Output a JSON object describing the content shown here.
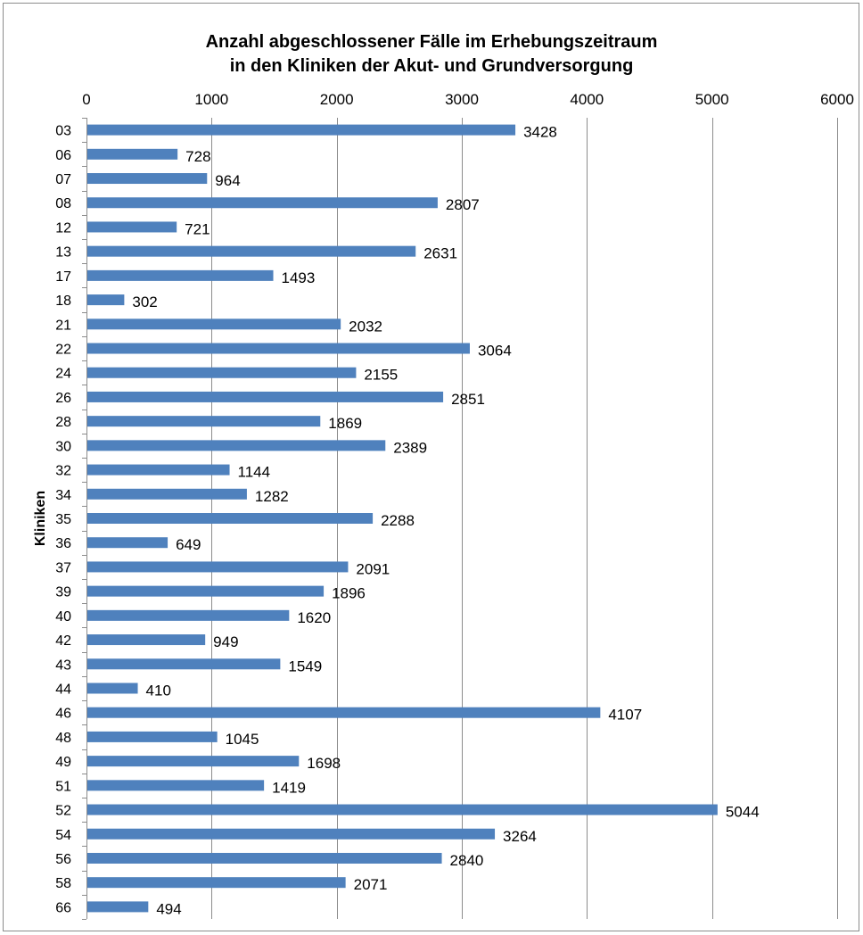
{
  "chart_data": {
    "type": "bar",
    "orientation": "horizontal",
    "title_line1": "Anzahl abgeschlossener Fälle im Erhebungszeitraum",
    "title_line2": "in den Kliniken der Akut- und Grundversorgung",
    "ylabel": "Kliniken",
    "xlabel": "",
    "xlim": [
      0,
      6000
    ],
    "x_ticks": [
      "0",
      "1000",
      "2000",
      "3000",
      "4000",
      "5000",
      "6000"
    ],
    "x_tick_values": [
      0,
      1000,
      2000,
      3000,
      4000,
      5000,
      6000
    ],
    "x_axis_position": "top",
    "grid": "vertical",
    "bar_color": "#4f81bd",
    "categories": [
      "03",
      "06",
      "07",
      "08",
      "12",
      "13",
      "17",
      "18",
      "21",
      "22",
      "24",
      "26",
      "28",
      "30",
      "32",
      "34",
      "35",
      "36",
      "37",
      "39",
      "40",
      "42",
      "43",
      "44",
      "46",
      "48",
      "49",
      "51",
      "52",
      "54",
      "56",
      "58",
      "66"
    ],
    "values": [
      3428,
      728,
      964,
      2807,
      721,
      2631,
      1493,
      302,
      2032,
      3064,
      2155,
      2851,
      1869,
      2389,
      1144,
      1282,
      2288,
      649,
      2091,
      1896,
      1620,
      949,
      1549,
      410,
      4107,
      1045,
      1698,
      1419,
      5044,
      3264,
      2840,
      2071,
      494
    ],
    "data_labels": [
      "3428",
      "728",
      "964",
      "2807",
      "721",
      "2631",
      "1493",
      "302",
      "2032",
      "3064",
      "2155",
      "2851",
      "1869",
      "2389",
      "1144",
      "1282",
      "2288",
      "649",
      "2091",
      "1896",
      "1620",
      "949",
      "1549",
      "410",
      "4107",
      "1045",
      "1698",
      "1419",
      "5044",
      "3264",
      "2840",
      "2071",
      "494"
    ]
  }
}
